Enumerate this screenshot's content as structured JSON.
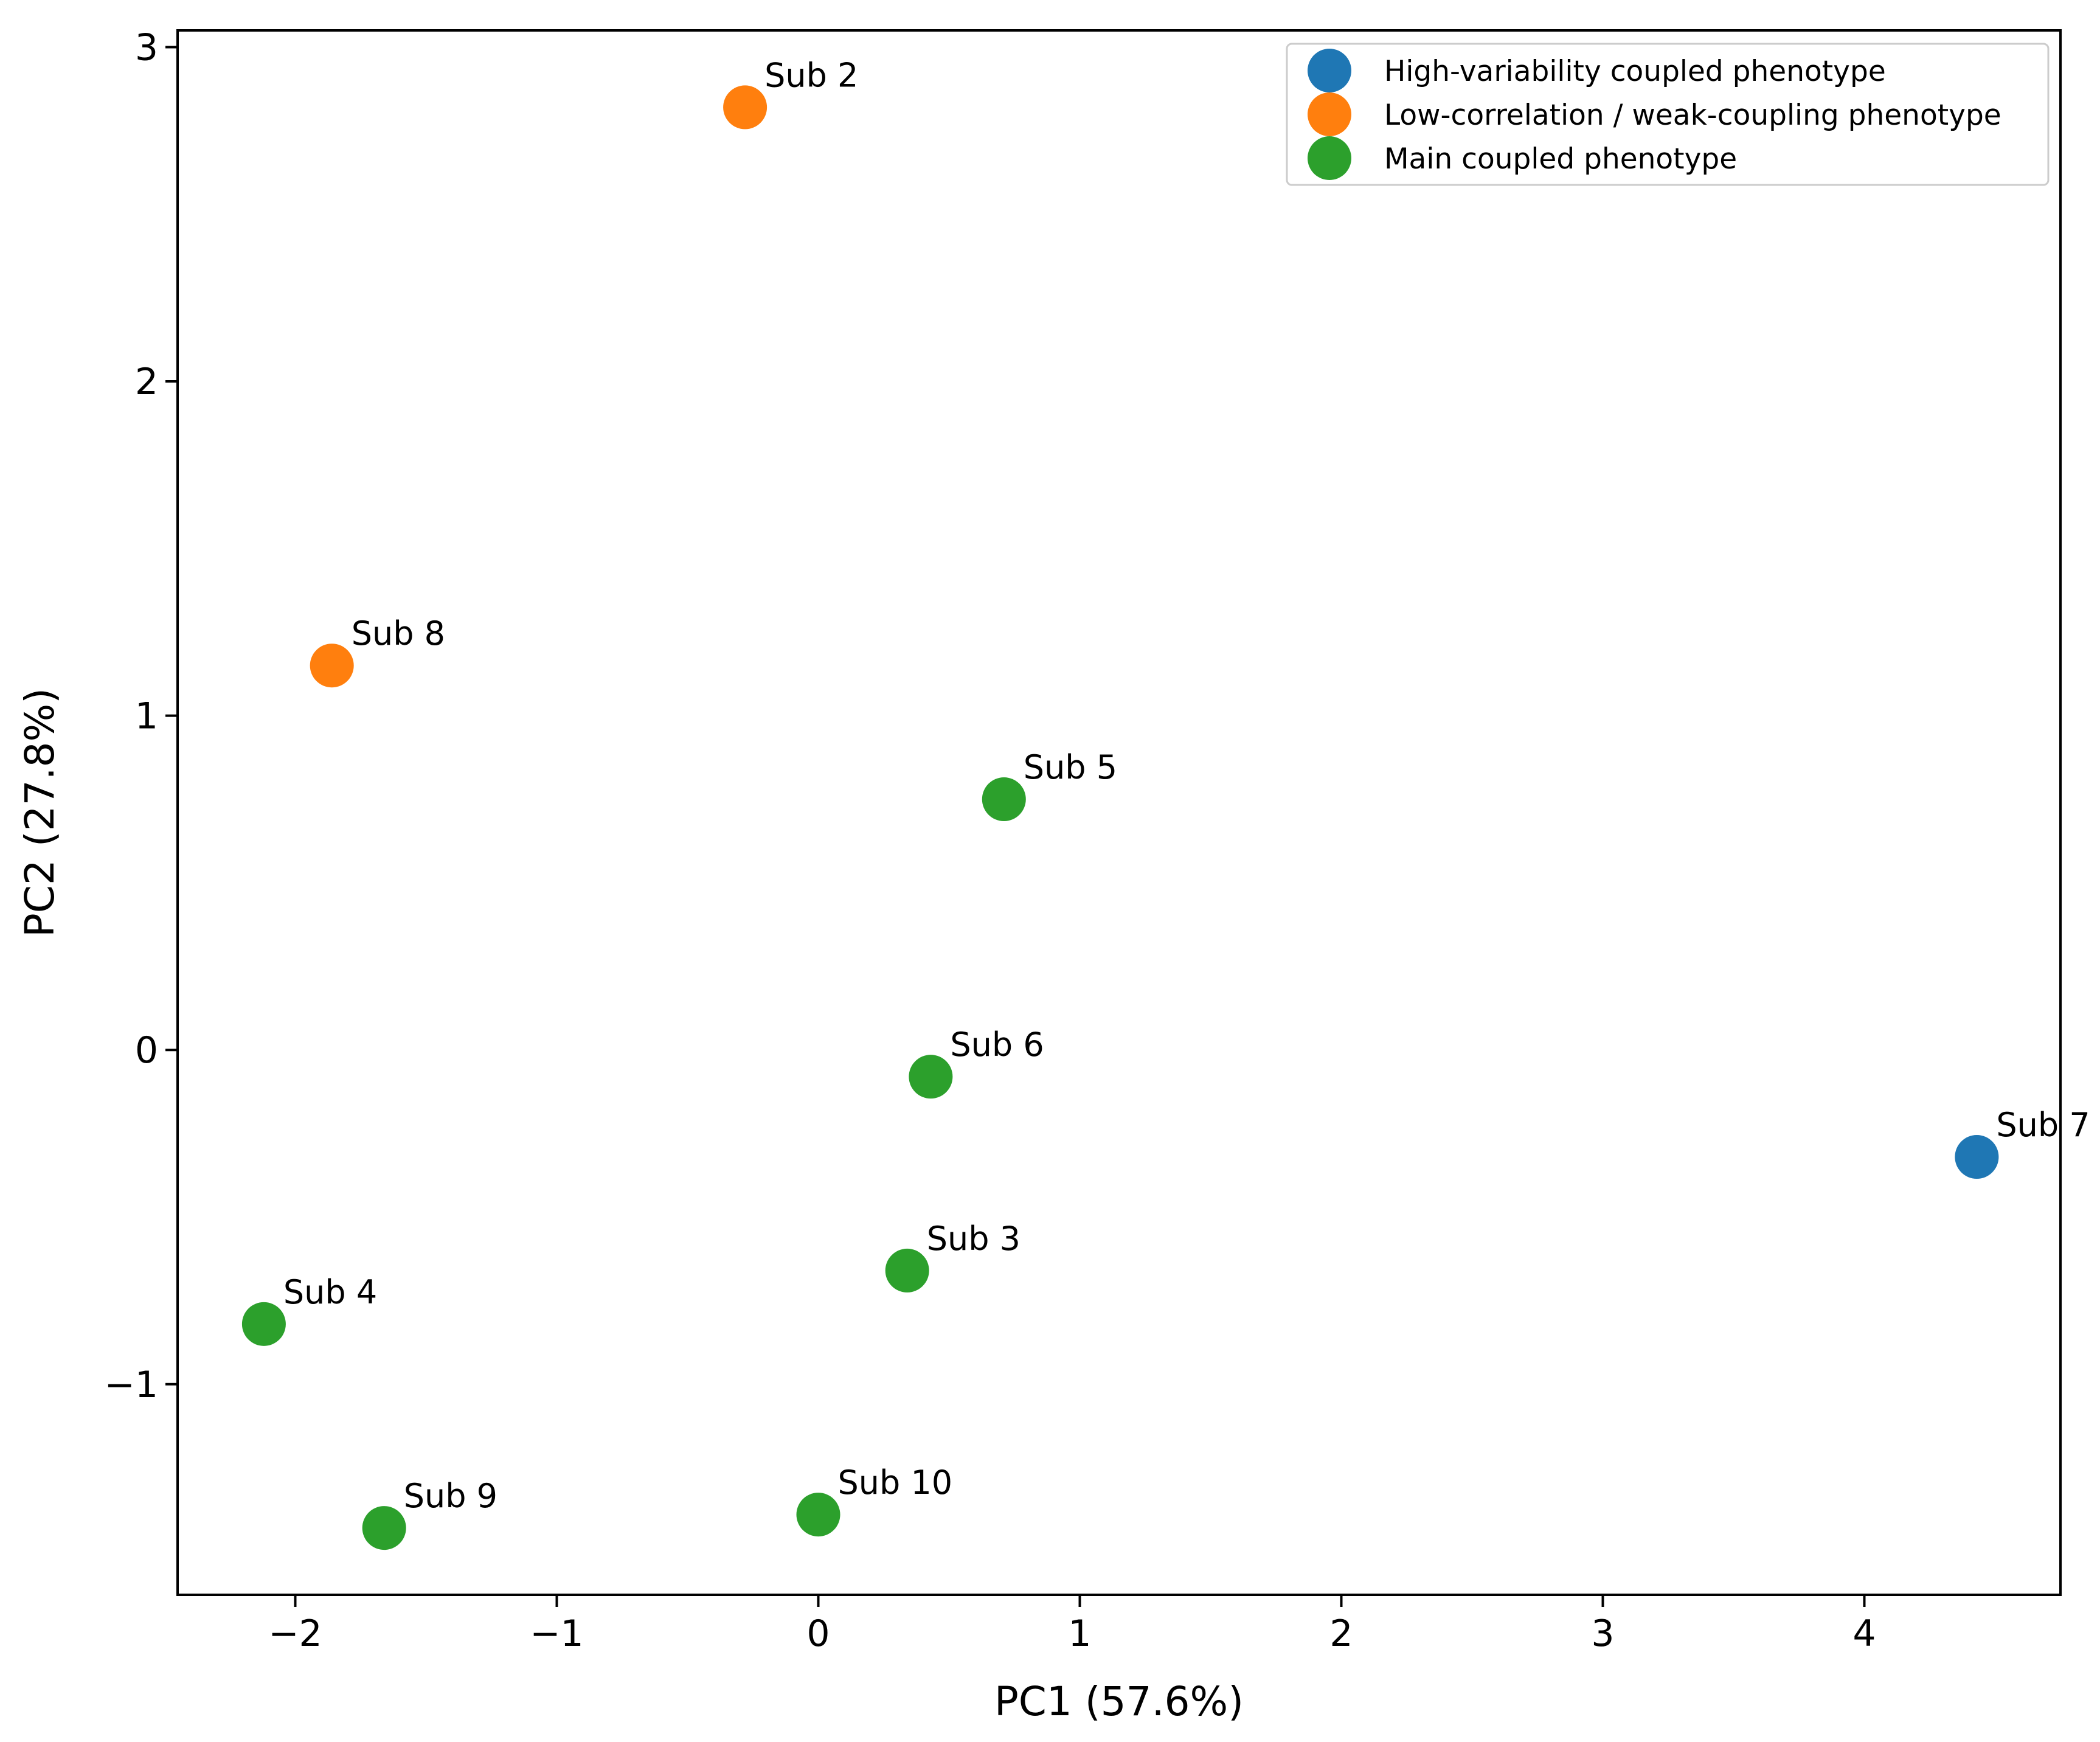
{
  "chart_data": {
    "type": "scatter",
    "title": "",
    "xlabel": "PC1 (57.6%)",
    "ylabel": "PC2 (27.8%)",
    "xlim": [
      -2.45,
      4.75
    ],
    "ylim": [
      -1.63,
      3.05
    ],
    "xticks": [
      -2,
      -1,
      0,
      1,
      2,
      3,
      4
    ],
    "yticks": [
      -1,
      0,
      1,
      2,
      3
    ],
    "xtick_labels": [
      "−2",
      "−1",
      "0",
      "1",
      "2",
      "3",
      "4"
    ],
    "ytick_labels": [
      "−1",
      "0",
      "1",
      "2",
      "3"
    ],
    "grid": false,
    "legend_position": "top-right",
    "series": [
      {
        "name": "High-variability coupled phenotype",
        "color": "#1f77b4",
        "points": [
          {
            "label": "Sub 7",
            "x": 4.43,
            "y": -0.32
          }
        ]
      },
      {
        "name": "Low-correlation / weak-coupling phenotype",
        "color": "#ff7f0e",
        "points": [
          {
            "label": "Sub 2",
            "x": -0.28,
            "y": 2.82
          },
          {
            "label": "Sub 8",
            "x": -1.86,
            "y": 1.15
          }
        ]
      },
      {
        "name": "Main coupled phenotype",
        "color": "#2ca02c",
        "points": [
          {
            "label": "Sub 5",
            "x": 0.71,
            "y": 0.75
          },
          {
            "label": "Sub 6",
            "x": 0.43,
            "y": -0.08
          },
          {
            "label": "Sub 3",
            "x": 0.34,
            "y": -0.66
          },
          {
            "label": "Sub 4",
            "x": -2.12,
            "y": -0.82
          },
          {
            "label": "Sub 9",
            "x": -1.66,
            "y": -1.43
          },
          {
            "label": "Sub 10",
            "x": 0.0,
            "y": -1.39
          }
        ]
      }
    ]
  }
}
